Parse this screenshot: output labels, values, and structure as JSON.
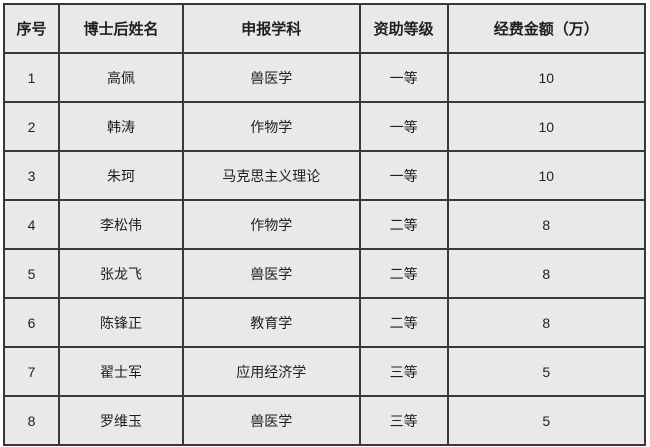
{
  "chart_data": {
    "type": "table",
    "title": "",
    "columns": [
      "序号",
      "博士后姓名",
      "申报学科",
      "资助等级",
      "经费金额（万）"
    ],
    "rows": [
      [
        "1",
        "高佩",
        "兽医学",
        "一等",
        "10"
      ],
      [
        "2",
        "韩涛",
        "作物学",
        "一等",
        "10"
      ],
      [
        "3",
        "朱珂",
        "马克思主义理论",
        "一等",
        "10"
      ],
      [
        "4",
        "李松伟",
        "作物学",
        "二等",
        "8"
      ],
      [
        "5",
        "张龙飞",
        "兽医学",
        "二等",
        "8"
      ],
      [
        "6",
        "陈锋正",
        "教育学",
        "二等",
        "8"
      ],
      [
        "7",
        "翟士军",
        "应用经济学",
        "三等",
        "5"
      ],
      [
        "8",
        "罗维玉",
        "兽医学",
        "三等",
        "5"
      ]
    ],
    "layout": {
      "grid": "on",
      "header_bold": true
    }
  },
  "colors": {
    "cell_background": "#e9e9e9",
    "border": "#383838",
    "text": "#1f1f1f",
    "page_background": "#ffffff"
  }
}
